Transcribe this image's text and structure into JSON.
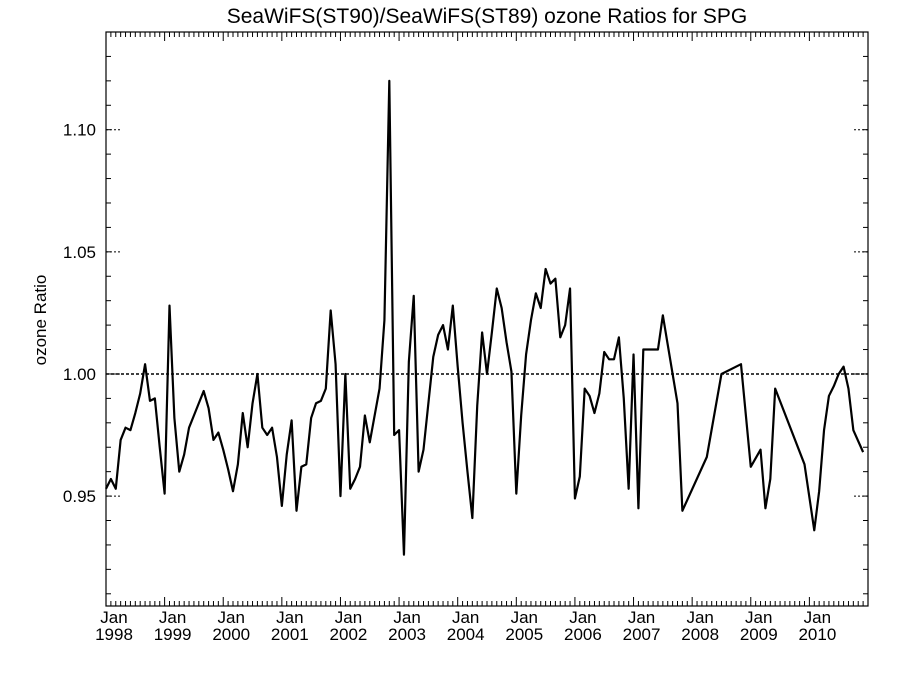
{
  "chart_data": {
    "type": "line",
    "title": "SeaWiFS(ST90)/SeaWiFS(ST89)  ozone Ratios for SPG",
    "xlabel": "",
    "ylabel": "ozone Ratio",
    "xlim": [
      "1998-01",
      "2011-01"
    ],
    "ylim": [
      0.905,
      1.14
    ],
    "y_ticks": [
      {
        "value": 0.95,
        "label": "0.95"
      },
      {
        "value": 1.0,
        "label": "1.00"
      },
      {
        "value": 1.05,
        "label": "1.05"
      },
      {
        "value": 1.1,
        "label": "1.10"
      }
    ],
    "x_ticks": [
      {
        "value": "1998-01",
        "month": "Jan",
        "year": "1998"
      },
      {
        "value": "1999-01",
        "month": "Jan",
        "year": "1999"
      },
      {
        "value": "2000-01",
        "month": "Jan",
        "year": "2000"
      },
      {
        "value": "2001-01",
        "month": "Jan",
        "year": "2001"
      },
      {
        "value": "2002-01",
        "month": "Jan",
        "year": "2002"
      },
      {
        "value": "2003-01",
        "month": "Jan",
        "year": "2003"
      },
      {
        "value": "2004-01",
        "month": "Jan",
        "year": "2004"
      },
      {
        "value": "2005-01",
        "month": "Jan",
        "year": "2005"
      },
      {
        "value": "2006-01",
        "month": "Jan",
        "year": "2006"
      },
      {
        "value": "2007-01",
        "month": "Jan",
        "year": "2007"
      },
      {
        "value": "2008-01",
        "month": "Jan",
        "year": "2008"
      },
      {
        "value": "2009-01",
        "month": "Jan",
        "year": "2009"
      },
      {
        "value": "2010-01",
        "month": "Jan",
        "year": "2010"
      }
    ],
    "reference_line": 1.0,
    "grid": false,
    "series": [
      {
        "points": [
          [
            "1998-01",
            0.953
          ],
          [
            "1998-02",
            0.957
          ],
          [
            "1998-03",
            0.953
          ],
          [
            "1998-04",
            0.973
          ],
          [
            "1998-05",
            0.978
          ],
          [
            "1998-06",
            0.977
          ],
          [
            "1998-07",
            0.984
          ],
          [
            "1998-08",
            0.992
          ],
          [
            "1998-09",
            1.004
          ],
          [
            "1998-10",
            0.989
          ],
          [
            "1998-11",
            0.99
          ],
          [
            "1998-12",
            0.97
          ],
          [
            "1999-01",
            0.951
          ],
          [
            "1999-02",
            1.028
          ],
          [
            "1999-03",
            0.982
          ],
          [
            "1999-04",
            0.96
          ],
          [
            "1999-05",
            0.967
          ],
          [
            "1999-06",
            0.978
          ],
          [
            "1999-07",
            0.983
          ],
          [
            "1999-08",
            0.988
          ],
          [
            "1999-09",
            0.993
          ],
          [
            "1999-10",
            0.986
          ],
          [
            "1999-11",
            0.973
          ],
          [
            "1999-12",
            0.976
          ],
          [
            "2000-01",
            0.969
          ],
          [
            "2000-02",
            0.961
          ],
          [
            "2000-03",
            0.952
          ],
          [
            "2000-04",
            0.963
          ],
          [
            "2000-05",
            0.984
          ],
          [
            "2000-06",
            0.97
          ],
          [
            "2000-07",
            0.988
          ],
          [
            "2000-08",
            1.0
          ],
          [
            "2000-09",
            0.978
          ],
          [
            "2000-10",
            0.975
          ],
          [
            "2000-11",
            0.978
          ],
          [
            "2000-12",
            0.966
          ],
          [
            "2001-01",
            0.946
          ],
          [
            "2001-02",
            0.967
          ],
          [
            "2001-03",
            0.981
          ],
          [
            "2001-04",
            0.944
          ],
          [
            "2001-05",
            0.962
          ],
          [
            "2001-06",
            0.963
          ],
          [
            "2001-07",
            0.982
          ],
          [
            "2001-08",
            0.988
          ],
          [
            "2001-09",
            0.989
          ],
          [
            "2001-10",
            0.994
          ],
          [
            "2001-11",
            1.026
          ],
          [
            "2001-12",
            1.004
          ],
          [
            "2002-01",
            0.95
          ],
          [
            "2002-02",
            1.0
          ],
          [
            "2002-03",
            0.953
          ],
          [
            "2002-04",
            0.957
          ],
          [
            "2002-05",
            0.962
          ],
          [
            "2002-06",
            0.983
          ],
          [
            "2002-07",
            0.972
          ],
          [
            "2002-08",
            0.983
          ],
          [
            "2002-09",
            0.994
          ],
          [
            "2002-10",
            1.022
          ],
          [
            "2002-11",
            1.12
          ],
          [
            "2002-12",
            0.975
          ],
          [
            "2003-01",
            0.977
          ],
          [
            "2003-02",
            0.926
          ],
          [
            "2003-03",
            1.005
          ],
          [
            "2003-04",
            1.032
          ],
          [
            "2003-05",
            0.96
          ],
          [
            "2003-06",
            0.969
          ],
          [
            "2003-07",
            0.988
          ],
          [
            "2003-08",
            1.007
          ],
          [
            "2003-09",
            1.016
          ],
          [
            "2003-10",
            1.02
          ],
          [
            "2003-11",
            1.01
          ],
          [
            "2003-12",
            1.028
          ],
          [
            "2004-01",
            1.003
          ],
          [
            "2004-02",
            0.98
          ],
          [
            "2004-03",
            0.96
          ],
          [
            "2004-04",
            0.941
          ],
          [
            "2004-05",
            0.987
          ],
          [
            "2004-06",
            1.017
          ],
          [
            "2004-07",
            1.0
          ],
          [
            "2004-08",
            1.017
          ],
          [
            "2004-09",
            1.035
          ],
          [
            "2004-10",
            1.027
          ],
          [
            "2004-11",
            1.013
          ],
          [
            "2004-12",
            1.001
          ],
          [
            "2005-01",
            0.951
          ],
          [
            "2005-02",
            0.983
          ],
          [
            "2005-03",
            1.008
          ],
          [
            "2005-04",
            1.022
          ],
          [
            "2005-05",
            1.033
          ],
          [
            "2005-06",
            1.027
          ],
          [
            "2005-07",
            1.043
          ],
          [
            "2005-08",
            1.037
          ],
          [
            "2005-09",
            1.039
          ],
          [
            "2005-10",
            1.015
          ],
          [
            "2005-11",
            1.02
          ],
          [
            "2005-12",
            1.035
          ],
          [
            "2006-01",
            0.949
          ],
          [
            "2006-02",
            0.958
          ],
          [
            "2006-03",
            0.994
          ],
          [
            "2006-04",
            0.991
          ],
          [
            "2006-05",
            0.984
          ],
          [
            "2006-06",
            0.992
          ],
          [
            "2006-07",
            1.009
          ],
          [
            "2006-08",
            1.006
          ],
          [
            "2006-09",
            1.006
          ],
          [
            "2006-10",
            1.015
          ],
          [
            "2006-11",
            0.99
          ],
          [
            "2006-12",
            0.953
          ],
          [
            "2007-01",
            1.008
          ],
          [
            "2007-02",
            0.945
          ],
          [
            "2007-03",
            1.01
          ],
          [
            "2007-04",
            1.01
          ],
          [
            "2007-05",
            1.01
          ],
          [
            "2007-06",
            1.01
          ],
          [
            "2007-07",
            1.024
          ],
          [
            "2007-08",
            1.012
          ],
          [
            "2007-10",
            0.988
          ],
          [
            "2007-11",
            0.944
          ],
          [
            "2008-04",
            0.966
          ],
          [
            "2008-07",
            1.0
          ],
          [
            "2008-11",
            1.004
          ],
          [
            "2009-01",
            0.962
          ],
          [
            "2009-03",
            0.969
          ],
          [
            "2009-04",
            0.945
          ],
          [
            "2009-05",
            0.957
          ],
          [
            "2009-06",
            0.994
          ],
          [
            "2009-12",
            0.963
          ],
          [
            "2010-02",
            0.936
          ],
          [
            "2010-03",
            0.952
          ],
          [
            "2010-04",
            0.977
          ],
          [
            "2010-05",
            0.991
          ],
          [
            "2010-06",
            0.995
          ],
          [
            "2010-07",
            1.0
          ],
          [
            "2010-08",
            1.003
          ],
          [
            "2010-09",
            0.994
          ],
          [
            "2010-10",
            0.977
          ],
          [
            "2010-12",
            0.968
          ]
        ]
      }
    ]
  }
}
